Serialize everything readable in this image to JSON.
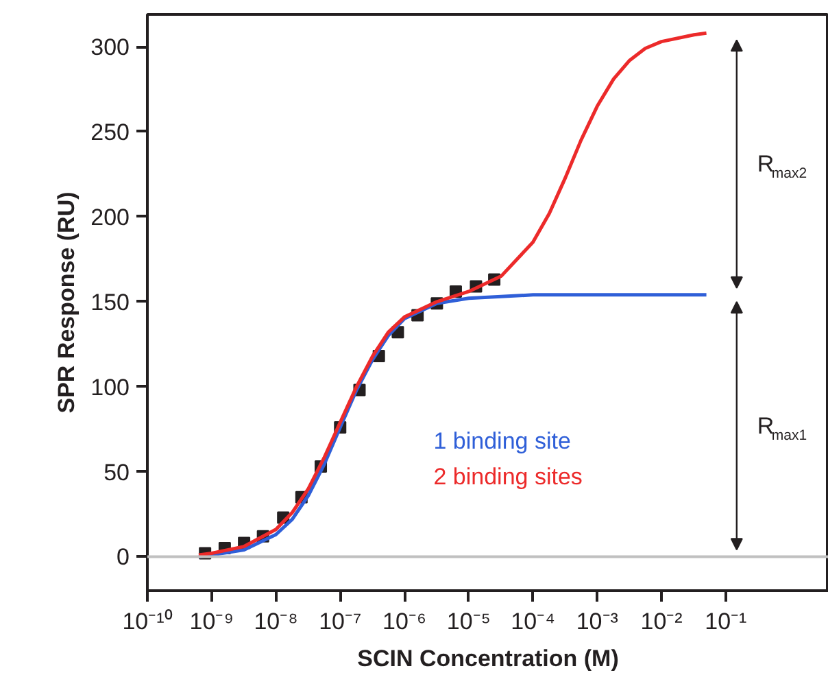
{
  "chart_data": {
    "type": "line",
    "xlabel": "SCIN Concentration (M)",
    "ylabel": "SPR Response (RU)",
    "log": "x",
    "xlim": [
      1e-10,
      4
    ],
    "ylim": [
      -20,
      319
    ],
    "xticks": [
      {
        "value": 1e-10,
        "label": "10⁻¹⁰"
      },
      {
        "value": 1e-09,
        "label": "10⁻⁹"
      },
      {
        "value": 1e-08,
        "label": "10⁻⁸"
      },
      {
        "value": 1e-07,
        "label": "10⁻⁷"
      },
      {
        "value": 1e-06,
        "label": "10⁻⁶"
      },
      {
        "value": 1e-05,
        "label": "10⁻⁵"
      },
      {
        "value": 0.0001,
        "label": "10⁻⁴"
      },
      {
        "value": 0.001,
        "label": "10⁻³"
      },
      {
        "value": 0.01,
        "label": "10⁻²"
      },
      {
        "value": 0.1,
        "label": "10⁻¹"
      }
    ],
    "yticks": [
      0,
      50,
      100,
      150,
      200,
      250,
      300
    ],
    "grid": false,
    "legend": "bottom right",
    "series": [
      {
        "type": "scatter",
        "marker": "square",
        "color": "#231f20",
        "x": [
          7.9e-10,
          1.6e-09,
          3.2e-09,
          6.3e-09,
          1.3e-08,
          2.5e-08,
          5e-08,
          1e-07,
          2e-07,
          4e-07,
          7.9e-07,
          1.6e-06,
          3.2e-06,
          6.3e-06,
          1.3e-05,
          2.5e-05
        ],
        "values": [
          2,
          5,
          8,
          12,
          23,
          35,
          53,
          76,
          98,
          118,
          132,
          142,
          149,
          156,
          159,
          163
        ]
      },
      {
        "name": "1 binding site",
        "color": "#2f5fd8",
        "x": [
          6.3e-10,
          1e-09,
          3.2e-09,
          1e-08,
          1.8e-08,
          3.2e-08,
          5.6e-08,
          1e-07,
          1.8e-07,
          3.2e-07,
          5.6e-07,
          1e-06,
          3.2e-06,
          1e-05,
          0.0001,
          0.001,
          0.05
        ],
        "values": [
          0,
          1,
          4,
          13,
          22,
          36,
          54,
          76,
          98,
          116,
          130,
          140,
          149,
          152,
          154,
          154,
          154
        ]
      },
      {
        "name": "2 binding sites",
        "color": "#ec2a2a",
        "x": [
          6.3e-10,
          1e-09,
          3.2e-09,
          1e-08,
          1.8e-08,
          3.2e-08,
          5.6e-08,
          1e-07,
          1.8e-07,
          3.2e-07,
          5.6e-07,
          1e-06,
          3.2e-06,
          1e-05,
          3.2e-05,
          0.0001,
          0.00018,
          0.00032,
          0.00056,
          0.001,
          0.0018,
          0.0032,
          0.0056,
          0.01,
          0.032,
          0.05
        ],
        "values": [
          1,
          2,
          6,
          16,
          26,
          40,
          58,
          79,
          100,
          118,
          132,
          141,
          150,
          156,
          165,
          185,
          202,
          223,
          245,
          265,
          281,
          292,
          299,
          303,
          307,
          308
        ]
      }
    ],
    "ref_lines": [
      {
        "axis": "y",
        "value": 0,
        "color": "#c0c0c0"
      }
    ],
    "annotations": [
      "R$_{max2}$",
      "R$_{max1}$"
    ]
  }
}
